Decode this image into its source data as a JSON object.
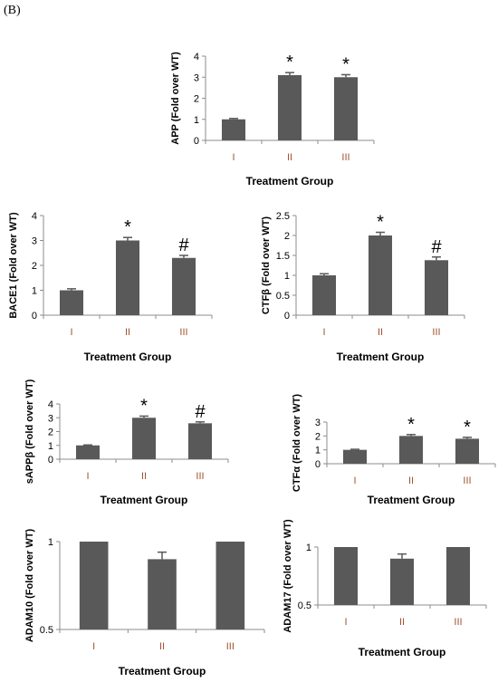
{
  "panel_label": "(B)",
  "colors": {
    "bar": "#595959",
    "axis": "#8c8c8c",
    "tick_label": "#000000",
    "category_label": "#a0522d"
  },
  "chart_data": [
    {
      "type": "bar",
      "id": "app",
      "categories": [
        "I",
        "II",
        "III"
      ],
      "values": [
        1.0,
        3.1,
        3.0
      ],
      "errors": [
        0.04,
        0.12,
        0.12
      ],
      "annotations": [
        "",
        "*",
        "*"
      ],
      "ylabel": "APP (Fold over WT)",
      "xlabel": "Treatment Group",
      "ylim": [
        0,
        4
      ],
      "yticks": [
        "0",
        "1",
        "2",
        "3",
        "4"
      ],
      "grid": false,
      "legend": "none"
    },
    {
      "type": "bar",
      "id": "bace1",
      "categories": [
        "I",
        "II",
        "III"
      ],
      "values": [
        1.0,
        3.0,
        2.3
      ],
      "errors": [
        0.06,
        0.12,
        0.1
      ],
      "annotations": [
        "",
        "*",
        "#"
      ],
      "ylabel": "BACE1 (Fold over WT)",
      "xlabel": "Treatment Group",
      "ylim": [
        0,
        4
      ],
      "yticks": [
        "0",
        "1",
        "2",
        "3",
        "4"
      ],
      "grid": false,
      "legend": "none"
    },
    {
      "type": "bar",
      "id": "ctfb",
      "categories": [
        "I",
        "II",
        "III"
      ],
      "values": [
        1.0,
        2.0,
        1.38
      ],
      "errors": [
        0.04,
        0.08,
        0.08
      ],
      "annotations": [
        "",
        "*",
        "#"
      ],
      "ylabel": "CTFβ (Fold over WT)",
      "xlabel": "Treatment Group",
      "ylim": [
        0,
        2.5
      ],
      "yticks": [
        "0",
        "0.5",
        "1",
        "1.5",
        "2",
        "2.5"
      ],
      "grid": false,
      "legend": "none"
    },
    {
      "type": "bar",
      "id": "sappb",
      "categories": [
        "I",
        "II",
        "III"
      ],
      "values": [
        1.0,
        3.0,
        2.6
      ],
      "errors": [
        0.03,
        0.12,
        0.1
      ],
      "annotations": [
        "",
        "*",
        "#"
      ],
      "ylabel": "sAPPβ (Fold over WT)",
      "xlabel": "Treatment Group",
      "ylim": [
        0,
        4
      ],
      "yticks": [
        "0",
        "1",
        "2",
        "3",
        "4"
      ],
      "grid": false,
      "legend": "none"
    },
    {
      "type": "bar",
      "id": "ctfa",
      "categories": [
        "I",
        "II",
        "III"
      ],
      "values": [
        1.0,
        2.0,
        1.8
      ],
      "errors": [
        0.04,
        0.1,
        0.1
      ],
      "annotations": [
        "",
        "*",
        "*"
      ],
      "ylabel": "CTFα (Fold over WT)",
      "xlabel": "Treatment Group",
      "ylim": [
        0,
        3
      ],
      "yticks": [
        "0",
        "1",
        "2",
        "3"
      ],
      "grid": false,
      "legend": "none"
    },
    {
      "type": "bar",
      "id": "adam10",
      "categories": [
        "I",
        "II",
        "III"
      ],
      "values": [
        1.0,
        0.9,
        1.0
      ],
      "errors": [
        0,
        0.04,
        0
      ],
      "annotations": [
        "",
        "",
        ""
      ],
      "ylabel": "ADAM10 (Fold over WT)",
      "xlabel": "Treatment Group",
      "ylim": [
        0.5,
        1.0
      ],
      "yticks": [
        "0.5",
        "1"
      ],
      "grid": false,
      "legend": "none"
    },
    {
      "type": "bar",
      "id": "adam17",
      "categories": [
        "I",
        "II",
        "III"
      ],
      "values": [
        1.0,
        0.9,
        1.0
      ],
      "errors": [
        0,
        0.04,
        0
      ],
      "annotations": [
        "",
        "",
        ""
      ],
      "ylabel": "ADAM17 (Fold over WT)",
      "xlabel": "Treatment Group",
      "ylim": [
        0.5,
        1.0
      ],
      "yticks": [
        "0.5",
        "1"
      ],
      "grid": false,
      "legend": "none"
    }
  ]
}
